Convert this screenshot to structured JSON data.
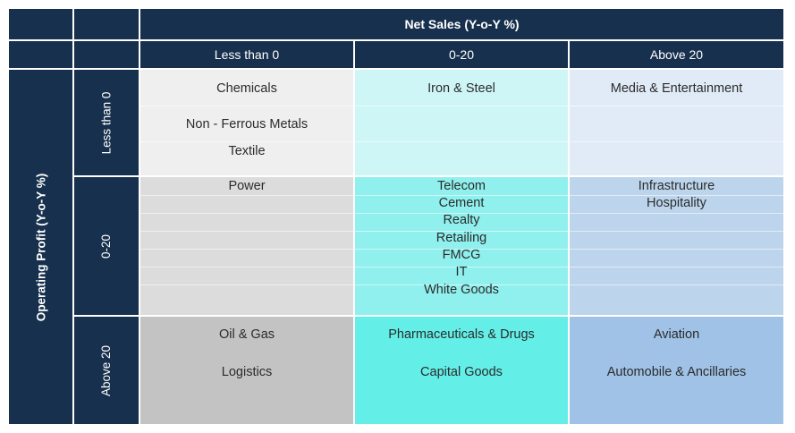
{
  "header": {
    "title": "Net Sales (Y-o-Y %)",
    "columns": [
      "Less than 0",
      "0-20",
      "Above 20"
    ]
  },
  "side": {
    "title": "Operating Profit (Y-o-Y %)",
    "rows": [
      "Less than 0",
      "0-20",
      "Above 20"
    ]
  },
  "colors": {
    "header_bg": "#17304d",
    "grid": {
      "row1": [
        "#efefef",
        "#cff6f6",
        "#e1ebf7"
      ],
      "row2": [
        "#dcdcdc",
        "#8ff0ee",
        "#bcd5ec"
      ],
      "row3": [
        "#c3c3c3",
        "#63efe8",
        "#9fc2e6"
      ]
    }
  },
  "cells": {
    "r1c1": [
      "Chemicals",
      "Non - Ferrous Metals",
      "Textile"
    ],
    "r1c2": [
      "Iron & Steel"
    ],
    "r1c3": [
      "Media & Entertainment"
    ],
    "r2c1": [
      "Power"
    ],
    "r2c2": [
      "Telecom",
      "Cement",
      "Realty",
      "Retailing",
      "FMCG",
      "IT",
      "White Goods"
    ],
    "r2c3": [
      "Infrastructure",
      "Hospitality"
    ],
    "r3c1": [
      "Oil & Gas",
      "Logistics"
    ],
    "r3c2": [
      "Pharmaceuticals & Drugs",
      "Capital Goods"
    ],
    "r3c3": [
      "Aviation",
      "Automobile & Ancillaries"
    ]
  }
}
